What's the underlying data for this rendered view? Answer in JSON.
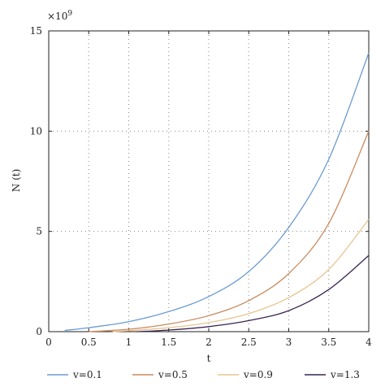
{
  "chart_data": {
    "type": "line",
    "xlabel": "t",
    "ylabel": "N (t)",
    "y_multiplier_label": "×10",
    "y_multiplier_exponent": "9",
    "xlim": [
      0,
      4
    ],
    "ylim": [
      0,
      15
    ],
    "x_ticks": [
      "0",
      "0.5",
      "1",
      "1.5",
      "2",
      "2.5",
      "3",
      "3.5",
      "4"
    ],
    "y_ticks": [
      "0",
      "5",
      "10",
      "15"
    ],
    "grid": "dotted",
    "legend_position": "bottom",
    "series": [
      {
        "name": "v=0.1",
        "color": "#6b9bd1",
        "x": [
          0.2,
          0.5,
          1.0,
          1.5,
          2.0,
          2.5,
          3.0,
          3.5,
          4.0
        ],
        "y": [
          0.06,
          0.2,
          0.5,
          1.0,
          1.75,
          3.0,
          5.2,
          8.6,
          13.9
        ]
      },
      {
        "name": "v=0.5",
        "color": "#c98a5d",
        "x": [
          0.5,
          1.0,
          1.5,
          2.0,
          2.5,
          3.0,
          3.5,
          4.0
        ],
        "y": [
          0.0,
          0.12,
          0.38,
          0.8,
          1.55,
          2.9,
          5.4,
          10.0
        ]
      },
      {
        "name": "v=0.9",
        "color": "#e8c48e",
        "x": [
          0.8,
          1.0,
          1.5,
          2.0,
          2.5,
          3.0,
          3.5,
          4.0
        ],
        "y": [
          0.0,
          0.05,
          0.2,
          0.45,
          0.9,
          1.7,
          3.1,
          5.6
        ]
      },
      {
        "name": "v=1.3",
        "color": "#3a2550",
        "x": [
          1.1,
          1.5,
          2.0,
          2.5,
          3.0,
          3.5,
          4.0
        ],
        "y": [
          0.0,
          0.08,
          0.25,
          0.55,
          1.05,
          2.1,
          3.8
        ]
      }
    ]
  }
}
